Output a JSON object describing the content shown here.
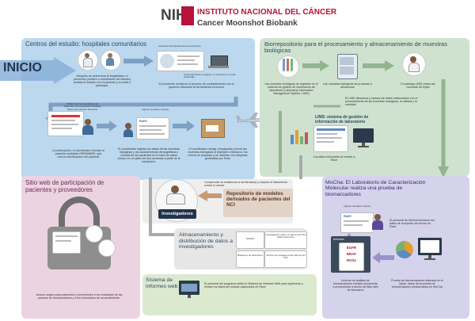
{
  "header": {
    "logo": "NIH",
    "title_es": "INSTITUTO NACIONAL DEL CÁNCER",
    "title_en": "Cancer Moonshot Biobank"
  },
  "colors": {
    "nih_red": "#b6123a",
    "clinics_blue": "#bcd8ee",
    "repo_green": "#cfe2cf",
    "portal_pink": "#ecd3e2",
    "mocha_purple": "#d5d2ec",
    "storage_gray": "#e6e6e6",
    "reports_green": "#dbe9cf",
    "arrow_blue": "#7ea0c4",
    "arrow_green": "#93b48f",
    "arrow_gray": "#aaaaaa",
    "dark": "#3b4a5a",
    "start_arrow": "#8ab0d8"
  },
  "inicio": "INICIO",
  "clinics": {
    "title": "Centros del estudio: hospitales comunitarios",
    "econsent_label": "eConsent (Consentimiento electrónico)",
    "consent_option": "Consentimiento en papel o el eConsent no está disponible",
    "step1": "Después de determinar la elegibilidad, el proveedor (médico o coordinador del estudio) analiza el estudio con el paciente y lo invita a participar.",
    "step2": "El proveedor comienza el proceso de consentimiento con el paciente utilizando la herramienta eConsent",
    "open_label": "OPEN: Red de inscripción de pacientes de oncología (Oncology Patient Enrollment Network)",
    "ingreso_label": "Ingreso de datos clínicos",
    "step3": "A continuación, el coordinador inscribe al paciente mediante OPEN/iWRS, que crea la identificación del paciente",
    "step4": "El coordinador registra los datos de las muestras biológicas y las características demográficas y clínicas de los pacientes en la base de datos clínica, en un plazo de dos semanas a partir de la inscripción.",
    "step5": "El coordinador recoge, empaqueta y envía las muestras biológicas al depósito o biobanco; los envíos se preparan y se rastrean con etiquetas generadas por Rave",
    "rave": "RAVE"
  },
  "repository": {
    "title": "Biorrepositorio para el procesamiento y almacenamiento de muestras biológicas",
    "step1": "Las muestras biológicas se registran en el sistema de gestión de información de laboratorio (Laboratory Information Management System, LIMS)",
    "step2": "Las muestras biológicas se procesan y almacenan",
    "step3": "El patólogo (MD) revisa las muestras de tejido",
    "lims_store": "El LIMS almacena y rastrea los datos relacionados con el procesamiento de las muestras biológicas, la calidad y la cantidad",
    "lims_title": "LIMS: sistema de gestión de información de laboratorio",
    "lims_data": "Los datos relevantes se envían a Rave"
  },
  "investigators": {
    "note": "Comprender la resistencia a los fármacos y mejorar el tratamiento contra el cáncer",
    "label": "Investigadores",
    "repo_models": "Repositorio de modelos derivados de pacientes del NCI"
  },
  "storage": {
    "title": "Almacenamiento y distribución de datos a investigadores",
    "items": [
      "dbGaP",
      "Investigación sobre el cáncer del NCI Data Commons",
      "Biobanco de Moonshot",
      "Archivo de imágenes del cáncer del NCI"
    ]
  },
  "portal": {
    "title": "Sitio web de participación de pacientes y proveedores",
    "text": "Acceso seguro para pacientes y proveedores a los resultados de las pruebas de biomarcadores y a los formularios de consentimiento."
  },
  "reports": {
    "title": "Sistema de informes web",
    "text": "El personal del programa utiliza el Sistema de informes Web para supervisar y revisar los datos del estudio capturados en Rave"
  },
  "mocha": {
    "title": "MoCha: El Laboratorio de Caracterización Molecular realiza una prueba de biomarcadores",
    "ingreso_label": "Ingreso de datos clínicos",
    "staff_text": "El personal de MoCha introduce los datos de recepción de envíos en Rave",
    "report_title": "Informe",
    "genes": [
      "EGFR",
      "BRAF",
      "ROS1"
    ],
    "report_text": "Informe de análisis de biomarcadores enviado al paciente y al proveedor a través del sitio web de Moonshot",
    "tests_text": "Prueba de biomarcadores realizada en el tejido: datos de la prueba de biomarcadores almacenados en MoCha"
  }
}
